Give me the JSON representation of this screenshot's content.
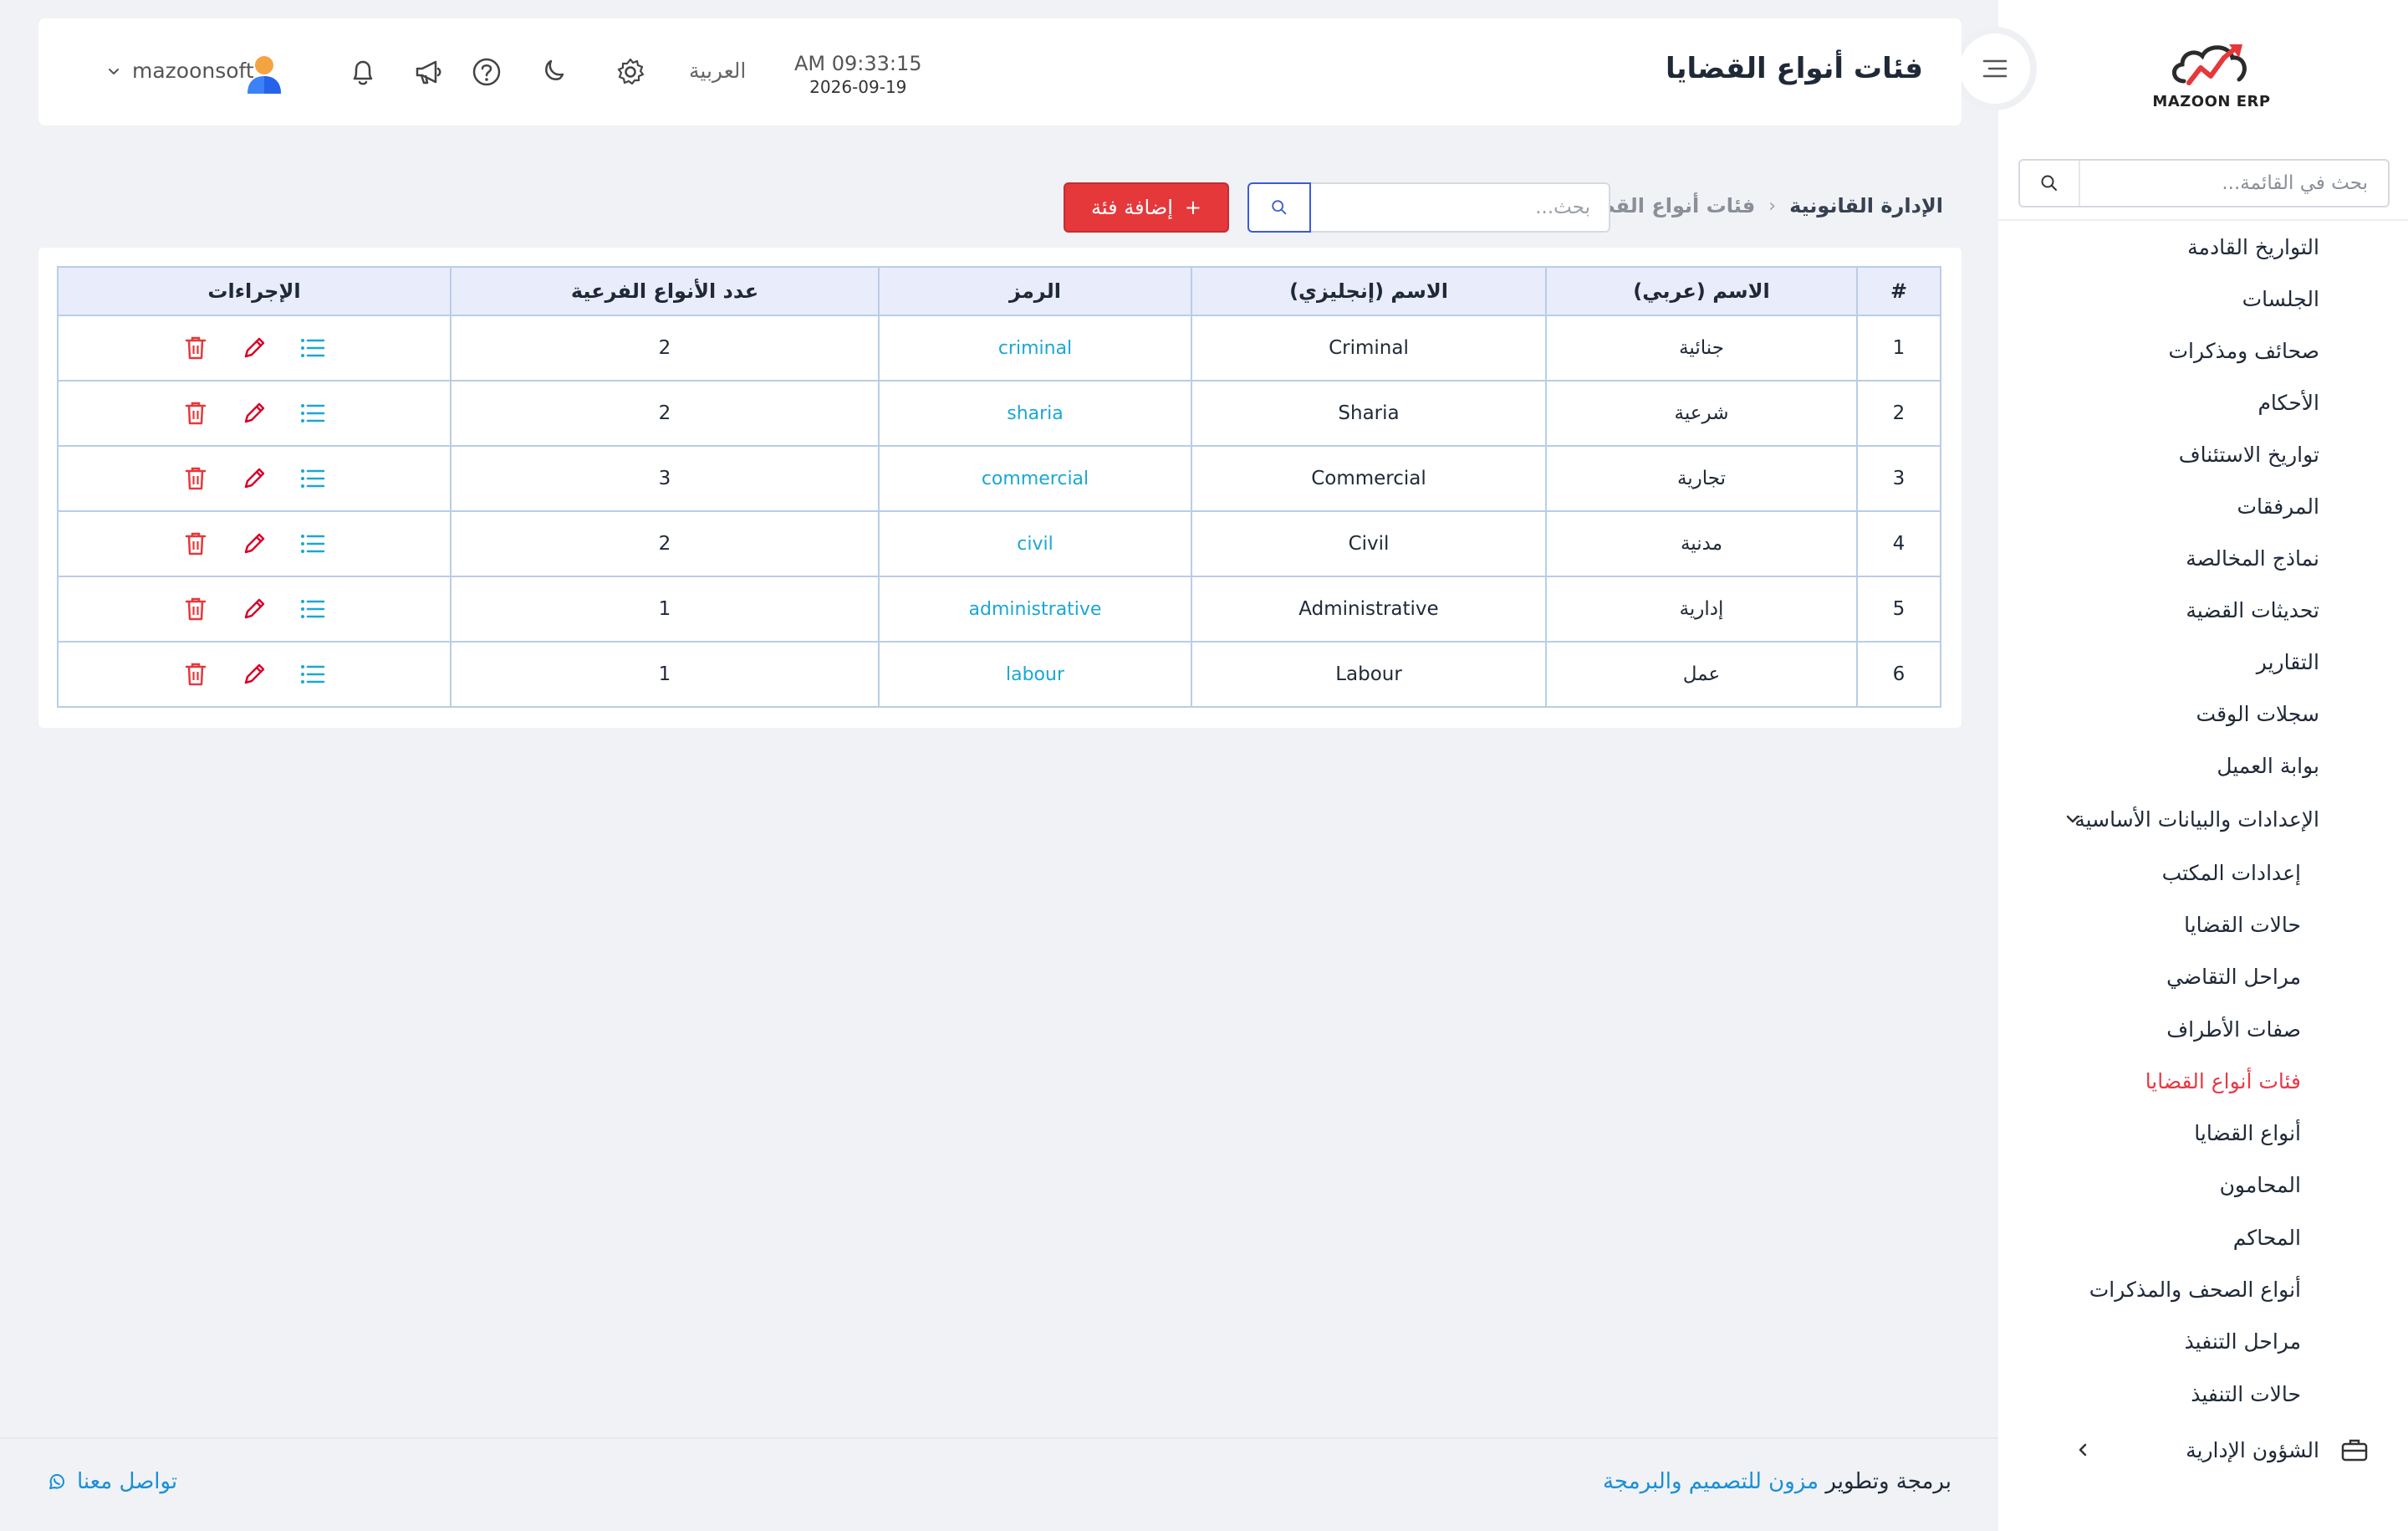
{
  "brand": {
    "logo_text": "MAZOON ERP"
  },
  "header": {
    "title": "فئات أنواع القضايا",
    "time": "AM 09:33:15",
    "date": "2026-09-19",
    "language": "العربية",
    "username": "mazoonsoft"
  },
  "sidebar": {
    "search_placeholder": "بحث في القائمة...",
    "items": [
      "التواريخ القادمة",
      "الجلسات",
      "صحائف ومذكرات",
      "الأحكام",
      "تواريخ الاستئناف",
      "المرفقات",
      "نماذج المخالصة",
      "تحديثات القضية",
      "التقارير",
      "سجلات الوقت",
      "بوابة العميل"
    ],
    "group": "الإعدادات والبيانات الأساسية",
    "subitems": [
      "إعدادات المكتب",
      "حالات القضايا",
      "مراحل التقاضي",
      "صفات الأطراف",
      "فئات أنواع القضايا",
      "أنواع القضايا",
      "المحامون",
      "المحاكم",
      "أنواع الصحف والمذكرات",
      "مراحل التنفيذ",
      "حالات التنفيذ"
    ],
    "active_subitem": "فئات أنواع القضايا",
    "bottom_item": "الشؤون الإدارية"
  },
  "toolbar": {
    "breadcrumb_root": "الإدارة القانونية",
    "breadcrumb_current": "فئات أنواع القضايا",
    "search_placeholder": "بحث...",
    "add_label": "إضافة فئة"
  },
  "table": {
    "columns": [
      "#",
      "الاسم (عربي)",
      "الاسم (إنجليزي)",
      "الرمز",
      "عدد الأنواع الفرعية",
      "الإجراءات"
    ],
    "rows": [
      {
        "num": "1",
        "name_ar": "جنائية",
        "name_en": "Criminal",
        "code": "criminal",
        "count": "2"
      },
      {
        "num": "2",
        "name_ar": "شرعية",
        "name_en": "Sharia",
        "code": "sharia",
        "count": "2"
      },
      {
        "num": "3",
        "name_ar": "تجارية",
        "name_en": "Commercial",
        "code": "commercial",
        "count": "3"
      },
      {
        "num": "4",
        "name_ar": "مدنية",
        "name_en": "Civil",
        "code": "civil",
        "count": "2"
      },
      {
        "num": "5",
        "name_ar": "إدارية",
        "name_en": "Administrative",
        "code": "administrative",
        "count": "1"
      },
      {
        "num": "6",
        "name_ar": "عمل",
        "name_en": "Labour",
        "code": "labour",
        "count": "1"
      }
    ]
  },
  "footer": {
    "credit_prefix": "برمجة وتطوير",
    "credit_link": "مزون للتصميم والبرمجة",
    "contact": "تواصل معنا"
  },
  "colors": {
    "accent": "#e5383b",
    "link": "#1a8fd6",
    "code": "#1aa7d4",
    "primary": "#3b5bdb"
  }
}
